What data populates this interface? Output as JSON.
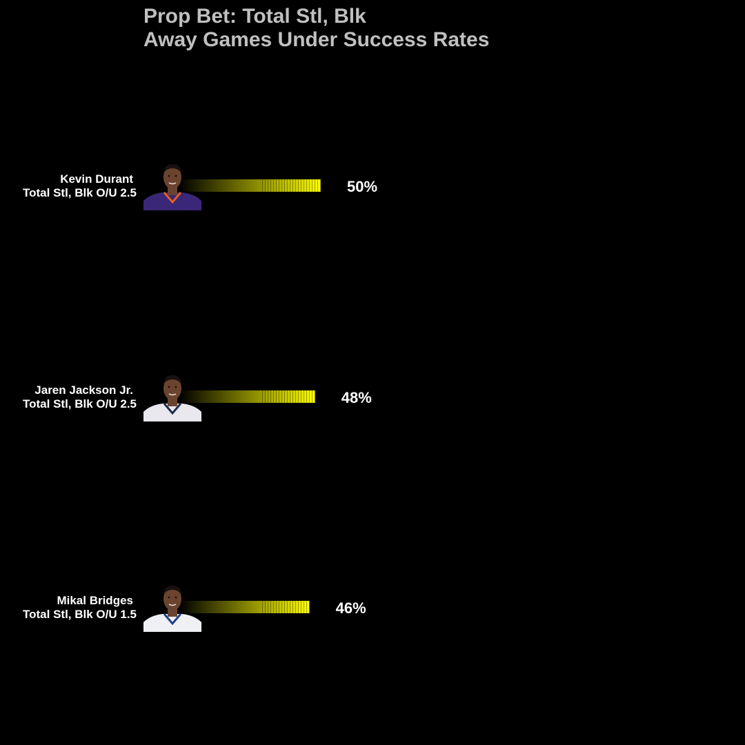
{
  "chart_data": {
    "type": "bar",
    "orientation": "horizontal",
    "title_lines": [
      "Prop Bet: Total Stl, Blk",
      "Away Games Under Success Rates"
    ],
    "categories": [
      {
        "player": "Kevin Durant",
        "prop": "Total Stl, Blk O/U 2.5",
        "value": 50,
        "label": "50%",
        "avatar": "player-headshot",
        "jersey_color": "#3b2777",
        "jersey_trim": "#e56020"
      },
      {
        "player": "Jaren Jackson Jr.",
        "prop": "Total Stl, Blk O/U 2.5",
        "value": 48,
        "label": "48%",
        "avatar": "player-headshot",
        "jersey_color": "#e8e8ee",
        "jersey_trim": "#1d2b4a"
      },
      {
        "player": "Mikal Bridges",
        "prop": "Total Stl, Blk O/U 1.5",
        "value": 46,
        "label": "46%",
        "avatar": "player-headshot",
        "jersey_color": "#eef0f4",
        "jersey_trim": "#1d428a"
      }
    ],
    "value_unit": "%",
    "xlim": [
      0,
      100
    ],
    "grid": false,
    "legend": "none",
    "bar_gradient": [
      "#000000",
      "#ffff00"
    ]
  },
  "colors": {
    "background": "#000000",
    "title": "#c0c0c0",
    "label": "#ffffff",
    "bar_end": "#ffff00",
    "skin": "#6b4430",
    "hair": "#1a1010"
  }
}
